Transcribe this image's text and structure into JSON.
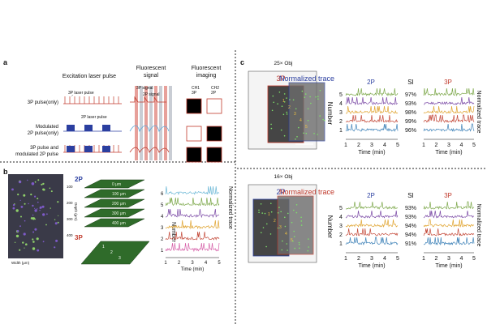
{
  "panel_a": {
    "letter": "a",
    "col_headers": [
      "Excitation laser pulse",
      "Fluorescent signal",
      "Fluorescent imaging"
    ],
    "col_header_lines": [
      [
        "Excitation laser pulse"
      ],
      [
        "Fluorescent",
        "signal"
      ],
      [
        "Fluorescent",
        "imaging"
      ]
    ],
    "row_labels": [
      [
        "3P pulse(only)"
      ],
      [
        "Modulated",
        "2P pulse(only)"
      ],
      [
        "3P pulse and",
        "modulated 2P pulse"
      ]
    ],
    "annotations": {
      "laser3p": "3P laser pulse",
      "laser2p": "2P laser pulse",
      "sig3p": "3P signal",
      "sig2p": "2P signal"
    },
    "channels": [
      "CH1",
      "3P",
      "CH2",
      "2P"
    ]
  },
  "panel_b": {
    "letter": "b",
    "depths": [
      "0 μm",
      "100 μm",
      "200 μm",
      "300 μm",
      "400 μm"
    ],
    "label_2p": "2P",
    "label_3p": "3P",
    "numbers_2p": [
      "1",
      "2"
    ],
    "numbers_3p": [
      "1",
      "2",
      "3"
    ],
    "axis3d": {
      "width": "Width (μm)",
      "depth": "Depth (μm)"
    },
    "ticks3d": [
      "100",
      "200",
      "300",
      "400"
    ],
    "traces": {
      "ylabel": "Number",
      "xlabel": "Time (min)",
      "right_label": "Normalized trace",
      "rows": [
        "6",
        "5",
        "4",
        "3",
        "2",
        "1"
      ],
      "xticks": [
        "1",
        "2",
        "3",
        "4",
        "5"
      ],
      "colors": [
        "#6ab7d6",
        "#7da84b",
        "#7b4aa6",
        "#e0a430",
        "#c44a3a",
        "#d660a8"
      ]
    }
  },
  "panel_c": {
    "letter": "c",
    "top": {
      "obj": "25× Obj",
      "left_label": "3P",
      "right_label": "Normalized trace",
      "cells": [
        "1",
        "2",
        "3",
        "4",
        "5"
      ],
      "head_2p": "2P",
      "head_si": "SI",
      "head_3p": "3P",
      "rows": [
        "5",
        "4",
        "3",
        "2",
        "1"
      ],
      "si": [
        "97%",
        "93%",
        "98%",
        "99%",
        "96%"
      ],
      "ylabel": "Number",
      "xlabel": "Time (min)",
      "xticks": [
        "1",
        "2",
        "3",
        "4",
        "5"
      ]
    },
    "bottom": {
      "obj": "16× Obj",
      "left_label": "2P",
      "right_label": "Normalized trace",
      "cells": [
        "1",
        "2",
        "3",
        "4",
        "5"
      ],
      "head_2p": "2P",
      "head_si": "SI",
      "head_3p": "3P",
      "rows": [
        "5",
        "4",
        "3",
        "2",
        "1"
      ],
      "si": [
        "93%",
        "93%",
        "94%",
        "94%",
        "91%"
      ],
      "ylabel": "Number",
      "xlabel": "Time (min)",
      "xticks": [
        "1",
        "2",
        "3",
        "4",
        "5"
      ]
    },
    "trace_colors": [
      "#7da84b",
      "#7b4aa6",
      "#e0a430",
      "#c44a3a",
      "#3e82b8"
    ]
  },
  "colors": {
    "three_p": "#c0392b",
    "two_p": "#2b3fa0",
    "signal_3p": "#e7a09a",
    "signal_2p": "#c9cdd4"
  }
}
